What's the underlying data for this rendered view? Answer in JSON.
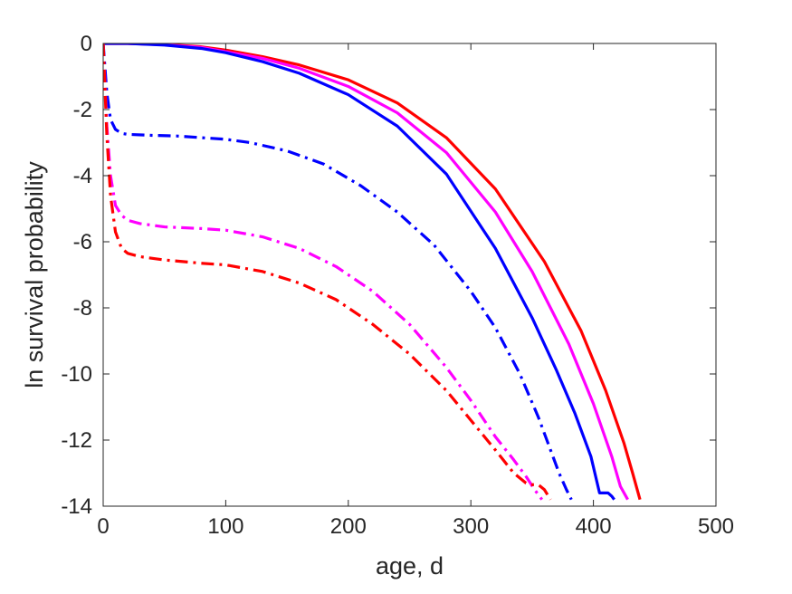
{
  "chart_data": {
    "type": "line",
    "title": "",
    "xlabel": "age, d",
    "ylabel": "ln survival probability",
    "xlim": [
      0,
      500
    ],
    "ylim": [
      -14,
      0
    ],
    "xticks": [
      0,
      100,
      200,
      300,
      400,
      500
    ],
    "yticks": [
      0,
      -2,
      -4,
      -6,
      -8,
      -10,
      -12,
      -14
    ],
    "xtick_labels": [
      "0",
      "100",
      "200",
      "300",
      "400",
      "500"
    ],
    "ytick_labels": [
      "0",
      "-2",
      "-4",
      "-6",
      "-8",
      "-10",
      "-12",
      "-14"
    ],
    "grid": false,
    "legend": "none",
    "series": [
      {
        "color": "#ff0000",
        "style": "solid",
        "x": [
          0,
          20,
          50,
          80,
          100,
          130,
          160,
          200,
          240,
          280,
          320,
          360,
          390,
          410,
          425,
          432,
          438
        ],
        "y": [
          0,
          0,
          -0.03,
          -0.1,
          -0.2,
          -0.4,
          -0.65,
          -1.1,
          -1.8,
          -2.85,
          -4.4,
          -6.6,
          -8.7,
          -10.5,
          -12.1,
          -13.0,
          -13.8
        ]
      },
      {
        "color": "#ff00ff",
        "style": "solid",
        "x": [
          0,
          20,
          50,
          80,
          100,
          130,
          160,
          200,
          240,
          280,
          320,
          350,
          380,
          400,
          415,
          422,
          428
        ],
        "y": [
          0,
          0,
          -0.04,
          -0.12,
          -0.25,
          -0.45,
          -0.75,
          -1.3,
          -2.1,
          -3.3,
          -5.1,
          -6.9,
          -9.1,
          -10.9,
          -12.5,
          -13.4,
          -13.8
        ]
      },
      {
        "color": "#0000ff",
        "style": "solid",
        "x": [
          0,
          20,
          50,
          80,
          100,
          130,
          160,
          200,
          240,
          280,
          320,
          350,
          370,
          385,
          398,
          405,
          412,
          415,
          417
        ],
        "y": [
          0,
          0,
          -0.05,
          -0.15,
          -0.28,
          -0.55,
          -0.9,
          -1.55,
          -2.5,
          -3.95,
          -6.2,
          -8.3,
          -9.9,
          -11.2,
          -12.5,
          -13.6,
          -13.6,
          -13.7,
          -13.8
        ]
      },
      {
        "color": "#0000ff",
        "style": "dashdot",
        "x": [
          0,
          3,
          6,
          10,
          15,
          20,
          40,
          60,
          80,
          100,
          120,
          150,
          180,
          210,
          240,
          270,
          300,
          320,
          340,
          355,
          365,
          372,
          378,
          382
        ],
        "y": [
          0,
          -1.5,
          -2.3,
          -2.6,
          -2.72,
          -2.75,
          -2.78,
          -2.8,
          -2.85,
          -2.9,
          -3.0,
          -3.25,
          -3.65,
          -4.3,
          -5.1,
          -6.1,
          -7.5,
          -8.6,
          -10.0,
          -11.3,
          -12.3,
          -13.0,
          -13.5,
          -13.8
        ]
      },
      {
        "color": "#ff00ff",
        "style": "dashdot",
        "x": [
          0,
          3,
          6,
          10,
          15,
          20,
          30,
          50,
          80,
          100,
          130,
          160,
          190,
          220,
          250,
          280,
          300,
          320,
          335,
          345,
          352,
          358
        ],
        "y": [
          0,
          -2.5,
          -4.0,
          -4.9,
          -5.2,
          -5.35,
          -5.45,
          -5.55,
          -5.6,
          -5.65,
          -5.85,
          -6.2,
          -6.75,
          -7.5,
          -8.5,
          -9.8,
          -10.8,
          -11.9,
          -12.6,
          -13.1,
          -13.5,
          -13.8
        ]
      },
      {
        "color": "#ff0000",
        "style": "dashdot",
        "x": [
          0,
          3,
          6,
          10,
          15,
          20,
          30,
          50,
          80,
          100,
          130,
          160,
          190,
          220,
          250,
          280,
          300,
          320,
          335,
          345,
          350,
          355,
          360,
          365
        ],
        "y": [
          0,
          -2.8,
          -4.6,
          -5.7,
          -6.2,
          -6.35,
          -6.45,
          -6.55,
          -6.65,
          -6.7,
          -6.9,
          -7.25,
          -7.75,
          -8.5,
          -9.4,
          -10.5,
          -11.4,
          -12.3,
          -13.0,
          -13.3,
          -13.35,
          -13.35,
          -13.5,
          -13.8
        ]
      }
    ]
  }
}
